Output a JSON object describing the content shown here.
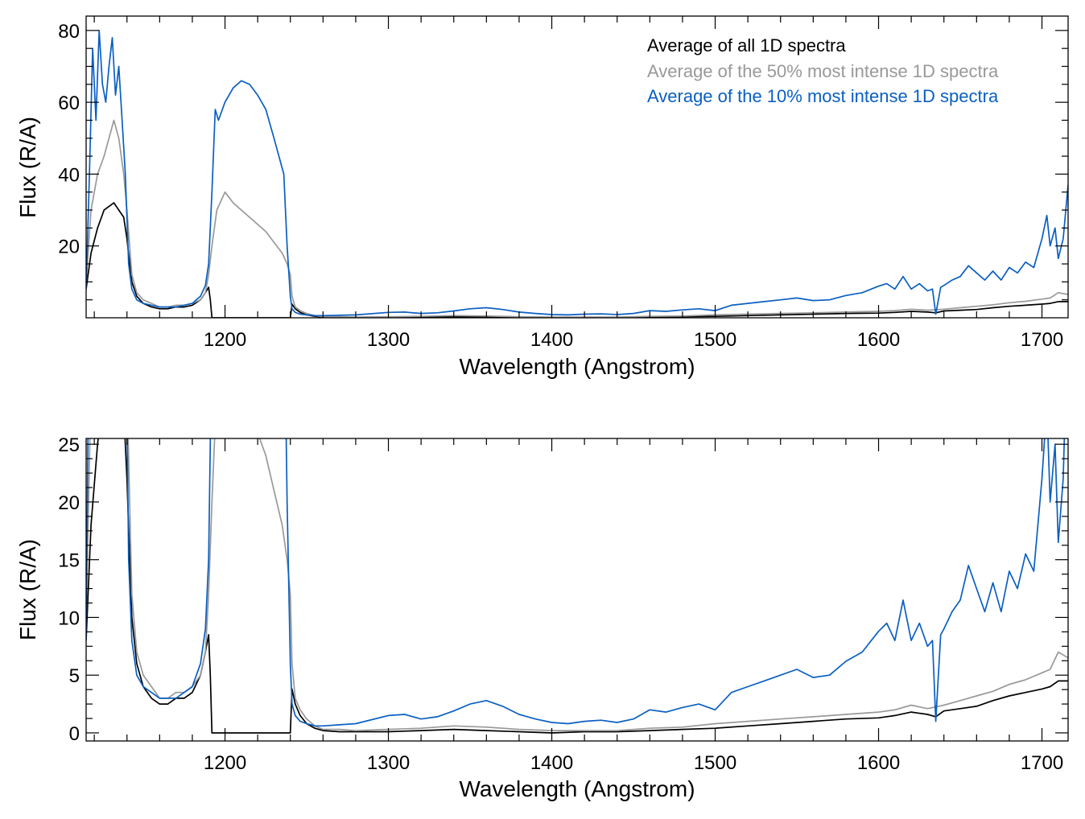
{
  "chart_data": [
    {
      "type": "line",
      "xlabel": "Wavelength (Angstrom)",
      "ylabel": "Flux (R/A)",
      "xlim": [
        1115,
        1716
      ],
      "ylim": [
        0,
        84
      ],
      "xticks": [
        1200,
        1300,
        1400,
        1500,
        1600,
        1700
      ],
      "yticks": [
        20,
        40,
        60,
        80
      ],
      "legend_position": "top-right",
      "series": [
        {
          "name": "Average of all 1D spectra",
          "color": "#000000",
          "x": [
            1115,
            1118,
            1122,
            1126,
            1129,
            1132,
            1135,
            1138,
            1140,
            1143,
            1146,
            1150,
            1155,
            1160,
            1165,
            1170,
            1175,
            1180,
            1185,
            1188,
            1190,
            1191,
            1192,
            1193,
            1200,
            1210,
            1220,
            1230,
            1239,
            1240,
            1241,
            1243,
            1246,
            1250,
            1255,
            1260,
            1270,
            1280,
            1300,
            1320,
            1340,
            1360,
            1380,
            1400,
            1420,
            1440,
            1460,
            1480,
            1500,
            1520,
            1540,
            1560,
            1580,
            1600,
            1610,
            1620,
            1630,
            1635,
            1640,
            1650,
            1660,
            1670,
            1680,
            1690,
            1700,
            1705,
            1710,
            1716
          ],
          "y": [
            8,
            18,
            25,
            30,
            31,
            32,
            30,
            28,
            22,
            10,
            6,
            4,
            3,
            2.5,
            2.5,
            3,
            3,
            3.5,
            5,
            7,
            8.5,
            5,
            0,
            0,
            0,
            0,
            0,
            0,
            0,
            0,
            3.8,
            2.5,
            1.5,
            0.8,
            0.4,
            0.2,
            0.1,
            0.1,
            0.1,
            0.2,
            0.3,
            0.2,
            0.1,
            0,
            0.1,
            0.1,
            0.2,
            0.3,
            0.4,
            0.6,
            0.8,
            1.0,
            1.2,
            1.3,
            1.5,
            1.8,
            1.6,
            1.4,
            1.9,
            2.1,
            2.3,
            2.8,
            3.2,
            3.5,
            3.8,
            4.0,
            4.5,
            4.5
          ]
        },
        {
          "name": "Average of the 50% most intense 1D spectra",
          "color": "#999999",
          "x": [
            1115,
            1118,
            1122,
            1126,
            1129,
            1132,
            1135,
            1138,
            1140,
            1143,
            1146,
            1150,
            1155,
            1160,
            1165,
            1170,
            1175,
            1180,
            1185,
            1188,
            1190,
            1192,
            1195,
            1200,
            1205,
            1210,
            1215,
            1220,
            1225,
            1230,
            1235,
            1238,
            1240,
            1241,
            1243,
            1246,
            1250,
            1255,
            1260,
            1270,
            1280,
            1300,
            1320,
            1340,
            1360,
            1380,
            1400,
            1420,
            1440,
            1460,
            1480,
            1500,
            1520,
            1540,
            1560,
            1580,
            1600,
            1610,
            1620,
            1630,
            1640,
            1650,
            1660,
            1670,
            1680,
            1690,
            1700,
            1705,
            1710,
            1716
          ],
          "y": [
            10,
            30,
            40,
            45,
            50,
            55,
            50,
            40,
            30,
            12,
            7,
            5,
            4,
            3,
            3,
            3.5,
            3.5,
            4,
            5,
            7,
            12,
            20,
            30,
            35,
            32,
            30,
            28,
            26,
            24,
            21,
            18,
            15,
            12,
            6,
            3,
            2,
            1.2,
            0.6,
            0.3,
            0.3,
            0.2,
            0.3,
            0.4,
            0.6,
            0.5,
            0.3,
            0.2,
            0.2,
            0.2,
            0.4,
            0.5,
            0.8,
            1.0,
            1.2,
            1.4,
            1.6,
            1.8,
            2.0,
            2.4,
            2.1,
            2.4,
            2.8,
            3.2,
            3.6,
            4.2,
            4.6,
            5.2,
            5.5,
            7.0,
            6.5
          ]
        },
        {
          "name": "Average of the 10% most intense 1D spectra",
          "color": "#0a5fc2",
          "x": [
            1115,
            1117,
            1119,
            1121,
            1123,
            1125,
            1127,
            1129,
            1131,
            1133,
            1135,
            1137,
            1139,
            1141,
            1143,
            1146,
            1150,
            1155,
            1160,
            1165,
            1170,
            1175,
            1180,
            1185,
            1188,
            1190,
            1192,
            1194,
            1196,
            1200,
            1205,
            1210,
            1215,
            1220,
            1225,
            1230,
            1233,
            1236,
            1238,
            1240,
            1241,
            1243,
            1246,
            1250,
            1255,
            1260,
            1270,
            1280,
            1300,
            1310,
            1320,
            1330,
            1340,
            1350,
            1360,
            1370,
            1380,
            1390,
            1400,
            1410,
            1420,
            1430,
            1440,
            1450,
            1460,
            1470,
            1480,
            1490,
            1500,
            1510,
            1520,
            1530,
            1540,
            1550,
            1560,
            1570,
            1580,
            1590,
            1600,
            1605,
            1610,
            1615,
            1620,
            1625,
            1630,
            1633,
            1635,
            1638,
            1640,
            1645,
            1650,
            1655,
            1660,
            1665,
            1670,
            1675,
            1680,
            1685,
            1690,
            1695,
            1700,
            1703,
            1705,
            1708,
            1710,
            1713,
            1716
          ],
          "y": [
            8,
            40,
            75,
            55,
            80,
            65,
            60,
            70,
            78,
            62,
            70,
            55,
            40,
            15,
            8,
            5,
            4,
            3.5,
            3,
            3,
            3,
            3.5,
            4,
            6,
            9,
            15,
            35,
            58,
            55,
            60,
            64,
            66,
            65,
            62,
            58,
            50,
            45,
            40,
            20,
            6,
            2.5,
            1.5,
            1,
            0.8,
            0.6,
            0.6,
            0.7,
            0.8,
            1.5,
            1.6,
            1.2,
            1.4,
            1.9,
            2.5,
            2.8,
            2.3,
            1.6,
            1.2,
            0.9,
            0.8,
            1.0,
            1.1,
            0.9,
            1.2,
            2.0,
            1.8,
            2.2,
            2.5,
            2.0,
            3.5,
            4.0,
            4.5,
            5.0,
            5.5,
            4.8,
            5.0,
            6.2,
            7.0,
            8.8,
            9.5,
            8.0,
            11.5,
            8.0,
            9.5,
            7.5,
            8.0,
            1.0,
            8.5,
            9.0,
            10.5,
            11.5,
            14.5,
            12.5,
            10.5,
            13.0,
            10.5,
            14.0,
            12.5,
            15.5,
            14.0,
            22.0,
            28.5,
            20.0,
            25.0,
            16.5,
            22.0,
            37.0
          ]
        }
      ]
    },
    {
      "type": "line",
      "xlabel": "Wavelength (Angstrom)",
      "ylabel": "Flux (R/A)",
      "xlim": [
        1115,
        1716
      ],
      "ylim": [
        -0.7,
        25.5
      ],
      "xticks": [
        1200,
        1300,
        1400,
        1500,
        1600,
        1700
      ],
      "yticks": [
        0,
        5,
        10,
        15,
        20,
        25
      ],
      "series_ref": "same three series as the upper panel, zoomed to the 0–25 flux range"
    }
  ]
}
